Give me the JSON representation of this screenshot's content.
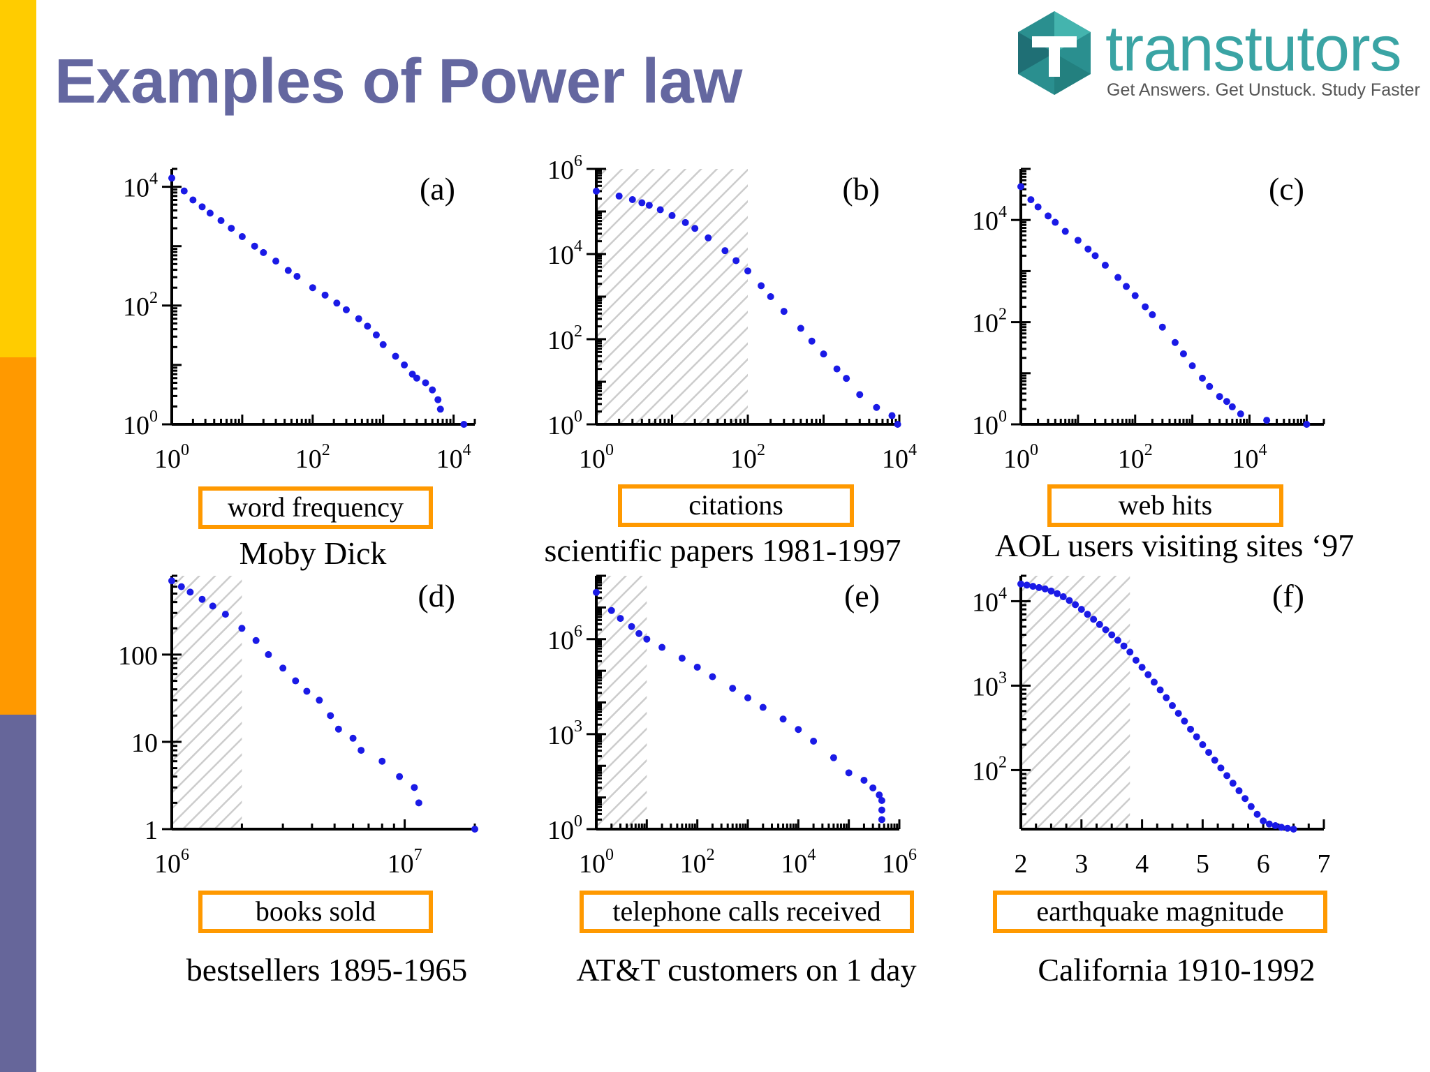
{
  "slide": {
    "title": "Examples of Power law",
    "title_color": "#6467a0",
    "sidebar_colors": [
      "#ffcc00",
      "#ff9900",
      "#66669a"
    ]
  },
  "logo": {
    "name": "transtutors",
    "tagline": "Get Answers. Get Unstuck. Study Faster",
    "icon": "hexagon-t-logo-icon",
    "colors": {
      "teal": "#2a8f8f",
      "text": "#3aa4a4",
      "dark": "#1f6f75"
    }
  },
  "style": {
    "point_color": "#1a1ae6",
    "box_color": "#ff9900",
    "hatch_color": "#cccccc"
  },
  "captions": {
    "a": "Moby Dick",
    "b": "scientific papers 1981-1997",
    "c": "AOL users visiting sites ‘97",
    "d": "bestsellers 1895-1965",
    "e": "AT&T customers on 1 day",
    "f": "California 1910-1992"
  },
  "chart_data": [
    {
      "id": "a",
      "panel_label": "(a)",
      "type": "scatter",
      "xlabel": "word frequency",
      "xscale": "log",
      "yscale": "log",
      "xlim": [
        1,
        20000
      ],
      "ylim": [
        1,
        20000
      ],
      "xticks": [
        {
          "base": "10",
          "exp": "0",
          "v": 1
        },
        {
          "base": "10",
          "exp": "2",
          "v": 100
        },
        {
          "base": "10",
          "exp": "4",
          "v": 10000
        }
      ],
      "yticks": [
        {
          "base": "10",
          "exp": "0",
          "v": 1
        },
        {
          "base": "10",
          "exp": "2",
          "v": 100
        },
        {
          "base": "10",
          "exp": "4",
          "v": 10000
        }
      ],
      "shaded_range": null,
      "x": [
        1,
        1.5,
        2,
        2.7,
        3.5,
        5,
        7,
        10,
        15,
        20,
        30,
        45,
        60,
        100,
        150,
        220,
        300,
        450,
        600,
        800,
        1000,
        1500,
        2000,
        2600,
        3000,
        4000,
        5000,
        6000,
        6500,
        14000
      ],
      "y": [
        14000,
        8500,
        6000,
        4600,
        3600,
        2700,
        2000,
        1450,
        1000,
        780,
        560,
        390,
        310,
        200,
        150,
        110,
        85,
        60,
        45,
        32,
        22,
        14,
        10,
        7,
        6,
        5,
        3.8,
        2.6,
        1.8,
        1
      ]
    },
    {
      "id": "b",
      "panel_label": "(b)",
      "type": "scatter",
      "xlabel": "citations",
      "xscale": "log",
      "yscale": "log",
      "xlim": [
        1,
        10000
      ],
      "ylim": [
        1,
        1000000
      ],
      "xticks": [
        {
          "base": "10",
          "exp": "0",
          "v": 1
        },
        {
          "base": "10",
          "exp": "2",
          "v": 100
        },
        {
          "base": "10",
          "exp": "4",
          "v": 10000
        }
      ],
      "yticks": [
        {
          "base": "10",
          "exp": "0",
          "v": 1
        },
        {
          "base": "10",
          "exp": "2",
          "v": 100
        },
        {
          "base": "10",
          "exp": "4",
          "v": 10000
        },
        {
          "base": "10",
          "exp": "6",
          "v": 1000000
        }
      ],
      "shaded_range": [
        1,
        100
      ],
      "x": [
        1,
        2,
        3,
        4,
        5,
        7,
        10,
        15,
        20,
        30,
        50,
        70,
        100,
        150,
        200,
        300,
        500,
        700,
        1000,
        1500,
        2000,
        3000,
        5000,
        8000,
        9500
      ],
      "y": [
        300000,
        230000,
        190000,
        160000,
        140000,
        110000,
        80000,
        55000,
        40000,
        24000,
        12000,
        7000,
        4000,
        1800,
        1000,
        450,
        180,
        90,
        45,
        20,
        12,
        5,
        2.5,
        1.6,
        1
      ]
    },
    {
      "id": "c",
      "panel_label": "(c)",
      "type": "scatter",
      "xlabel": "web hits",
      "xscale": "log",
      "yscale": "log",
      "xlim": [
        1,
        200000
      ],
      "ylim": [
        1,
        100000
      ],
      "xticks": [
        {
          "base": "10",
          "exp": "0",
          "v": 1
        },
        {
          "base": "10",
          "exp": "2",
          "v": 100
        },
        {
          "base": "10",
          "exp": "4",
          "v": 10000
        }
      ],
      "yticks": [
        {
          "base": "10",
          "exp": "0",
          "v": 1
        },
        {
          "base": "10",
          "exp": "2",
          "v": 100
        },
        {
          "base": "10",
          "exp": "4",
          "v": 10000
        }
      ],
      "shaded_range": null,
      "x": [
        1,
        1.5,
        2,
        3,
        4,
        6,
        10,
        15,
        20,
        30,
        50,
        70,
        100,
        150,
        200,
        300,
        500,
        700,
        1000,
        1500,
        2000,
        3000,
        4000,
        5000,
        7000,
        20000,
        100000
      ],
      "y": [
        45000,
        25000,
        18000,
        12000,
        9000,
        6000,
        4000,
        2700,
        2000,
        1300,
        750,
        500,
        330,
        200,
        140,
        80,
        40,
        24,
        14,
        8,
        5.5,
        3.5,
        2.8,
        2.2,
        1.6,
        1.2,
        1
      ]
    },
    {
      "id": "d",
      "panel_label": "(d)",
      "type": "scatter",
      "xlabel": "books sold",
      "xscale": "log",
      "yscale": "log",
      "xlim": [
        1000000,
        20000000
      ],
      "ylim": [
        1,
        800
      ],
      "xticks": [
        {
          "base": "10",
          "exp": "6",
          "v": 1000000
        },
        {
          "base": "10",
          "exp": "7",
          "v": 10000000
        }
      ],
      "yticks": [
        {
          "base": "1",
          "exp": "",
          "v": 1
        },
        {
          "base": "10",
          "exp": "",
          "v": 10
        },
        {
          "base": "100",
          "exp": "",
          "v": 100
        }
      ],
      "shaded_range": [
        1000000,
        2000000
      ],
      "x": [
        1000000,
        1100000,
        1200000,
        1350000,
        1500000,
        1700000,
        2000000,
        2300000,
        2600000,
        3000000,
        3400000,
        3800000,
        4300000,
        4800000,
        5200000,
        6000000,
        6500000,
        8000000,
        9500000,
        11000000,
        11500000,
        20000000
      ],
      "y": [
        700,
        600,
        520,
        430,
        360,
        290,
        200,
        145,
        100,
        70,
        50,
        38,
        30,
        20,
        14,
        11,
        8,
        6,
        4,
        3,
        2,
        1
      ]
    },
    {
      "id": "e",
      "panel_label": "(e)",
      "type": "scatter",
      "xlabel": "telephone calls received",
      "xscale": "log",
      "yscale": "log",
      "xlim": [
        1,
        1000000
      ],
      "ylim": [
        1,
        100000000
      ],
      "xticks": [
        {
          "base": "10",
          "exp": "0",
          "v": 1
        },
        {
          "base": "10",
          "exp": "2",
          "v": 100
        },
        {
          "base": "10",
          "exp": "4",
          "v": 10000
        },
        {
          "base": "10",
          "exp": "6",
          "v": 1000000
        }
      ],
      "yticks": [
        {
          "base": "10",
          "exp": "0",
          "v": 1
        },
        {
          "base": "10",
          "exp": "3",
          "v": 1000
        },
        {
          "base": "10",
          "exp": "6",
          "v": 1000000
        }
      ],
      "shaded_range": [
        1,
        10
      ],
      "x": [
        1,
        2,
        3,
        5,
        7,
        10,
        20,
        50,
        100,
        200,
        500,
        1000,
        2000,
        5000,
        10000,
        20000,
        50000,
        100000,
        200000,
        300000,
        400000,
        450000,
        450000,
        450000
      ],
      "y": [
        30000000,
        8000000,
        4500000,
        2500000,
        1500000,
        1000000,
        550000,
        250000,
        130000,
        65000,
        28000,
        14000,
        7000,
        3000,
        1400,
        600,
        180,
        60,
        35,
        20,
        12,
        8,
        4,
        2
      ]
    },
    {
      "id": "f",
      "panel_label": "(f)",
      "type": "scatter",
      "xlabel": "earthquake magnitude",
      "xscale": "linear",
      "yscale": "log",
      "xlim": [
        2,
        7
      ],
      "ylim": [
        20,
        20000
      ],
      "xticks": [
        {
          "base": "2",
          "exp": "",
          "v": 2
        },
        {
          "base": "3",
          "exp": "",
          "v": 3
        },
        {
          "base": "4",
          "exp": "",
          "v": 4
        },
        {
          "base": "5",
          "exp": "",
          "v": 5
        },
        {
          "base": "6",
          "exp": "",
          "v": 6
        },
        {
          "base": "7",
          "exp": "",
          "v": 7
        }
      ],
      "yticks": [
        {
          "base": "10",
          "exp": "2",
          "v": 100
        },
        {
          "base": "10",
          "exp": "3",
          "v": 1000
        },
        {
          "base": "10",
          "exp": "4",
          "v": 10000
        }
      ],
      "shaded_range": [
        2,
        3.8
      ],
      "x": [
        2.0,
        2.1,
        2.2,
        2.3,
        2.4,
        2.5,
        2.6,
        2.7,
        2.8,
        2.9,
        3.0,
        3.1,
        3.2,
        3.3,
        3.4,
        3.5,
        3.6,
        3.7,
        3.8,
        3.9,
        4.0,
        4.1,
        4.2,
        4.3,
        4.4,
        4.5,
        4.6,
        4.7,
        4.8,
        4.9,
        5.0,
        5.1,
        5.2,
        5.3,
        5.4,
        5.5,
        5.6,
        5.7,
        5.8,
        5.9,
        6.0,
        6.1,
        6.2,
        6.3,
        6.4,
        6.5
      ],
      "y": [
        16000,
        15500,
        15000,
        14500,
        14000,
        13200,
        12300,
        11300,
        10200,
        9100,
        8000,
        7000,
        6100,
        5300,
        4600,
        4000,
        3450,
        2950,
        2500,
        2000,
        1650,
        1350,
        1100,
        890,
        720,
        580,
        470,
        380,
        305,
        248,
        200,
        162,
        131,
        106,
        86,
        70,
        57,
        46,
        37,
        30,
        25,
        23,
        22,
        21,
        20.5,
        20
      ]
    }
  ]
}
